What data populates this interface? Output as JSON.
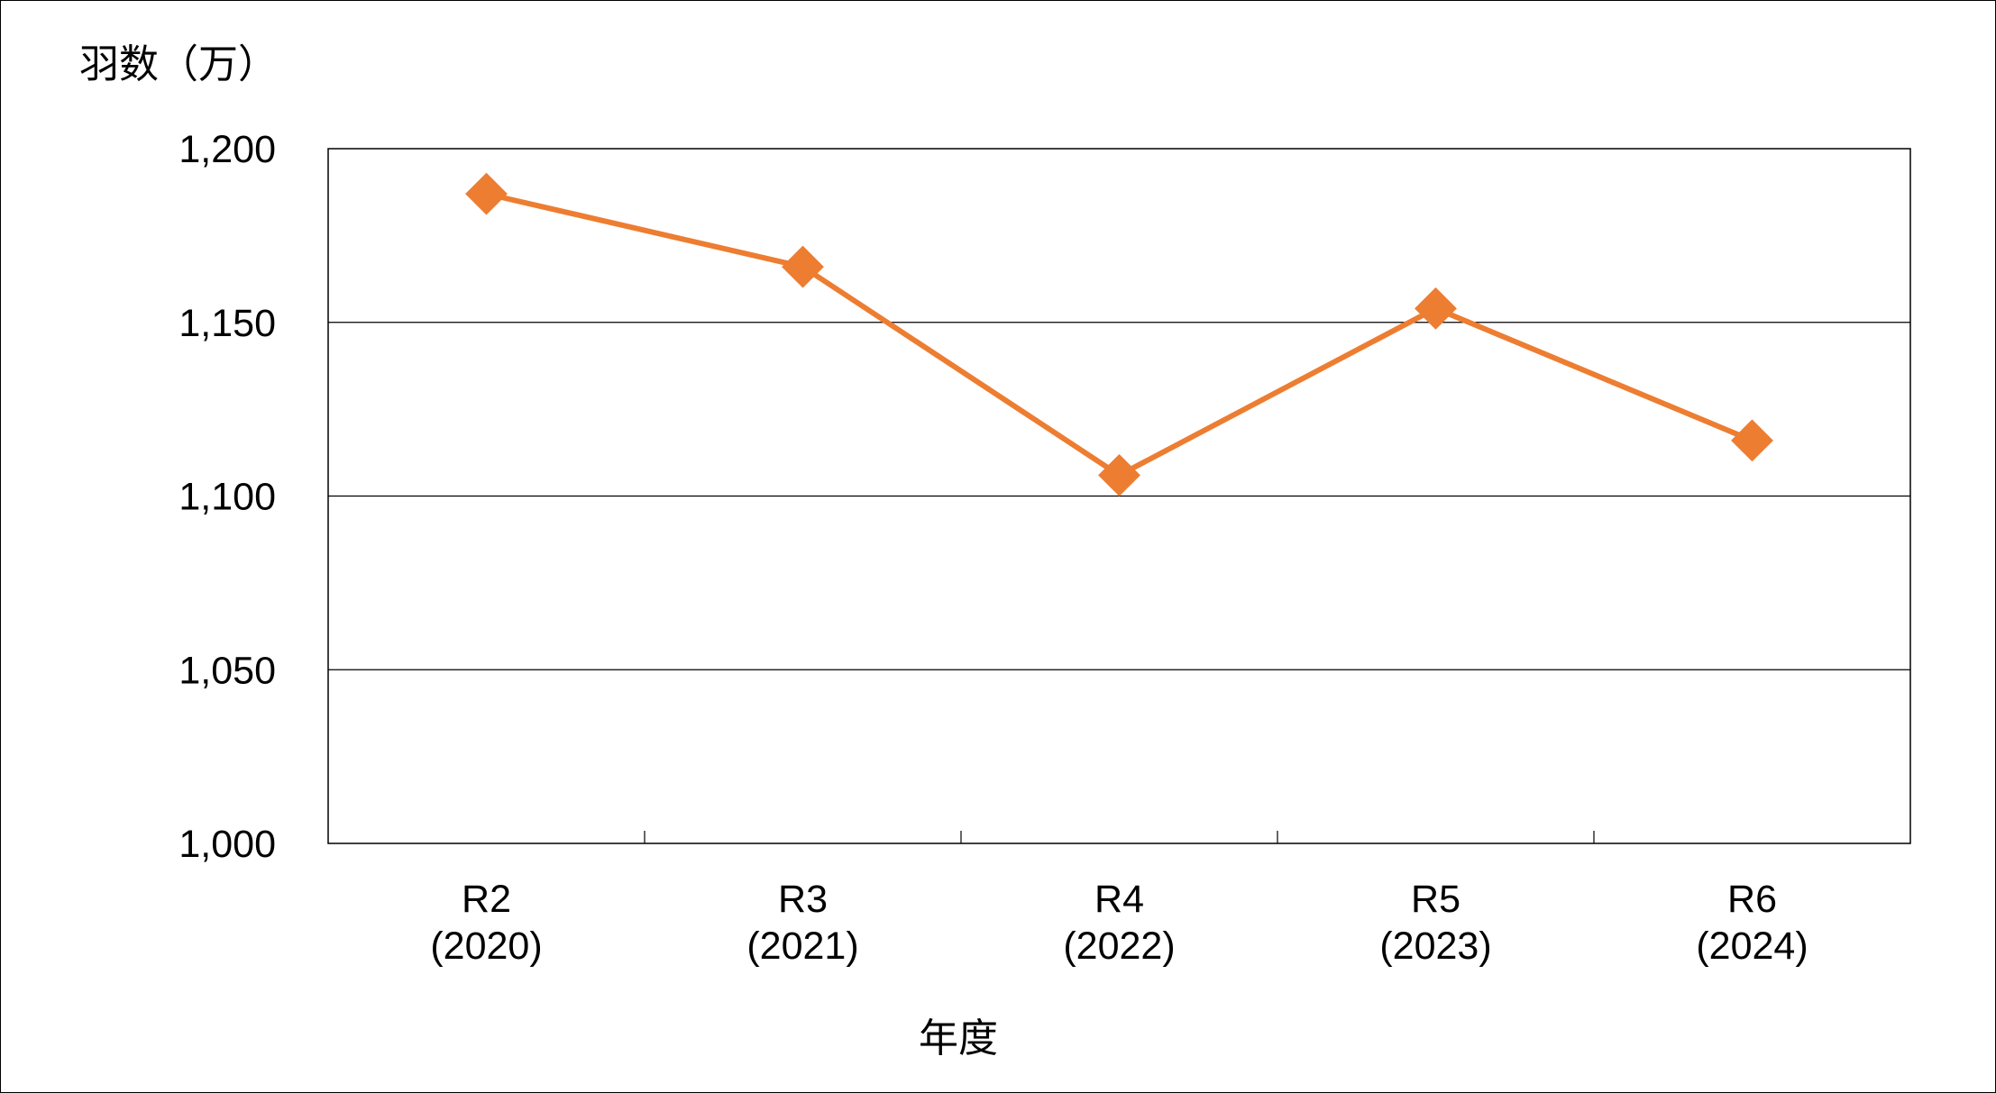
{
  "chart_data": {
    "type": "line",
    "title": "",
    "ylabel": "羽数（万）",
    "xlabel": "年度",
    "categories": [
      [
        "R2",
        "(2020)"
      ],
      [
        "R3",
        "(2021)"
      ],
      [
        "R4",
        "(2022)"
      ],
      [
        "R5",
        "(2023)"
      ],
      [
        "R6",
        "(2024)"
      ]
    ],
    "series": [
      {
        "values": [
          1187,
          1166,
          1106,
          1154,
          1116
        ],
        "color": "#ED7D31",
        "marker": "diamond"
      }
    ],
    "ylim": [
      1000,
      1200
    ],
    "yticks": [
      1000,
      1050,
      1100,
      1150,
      1200
    ],
    "ytick_labels": [
      "1,000",
      "1,050",
      "1,100",
      "1,150",
      "1,200"
    ],
    "grid": true,
    "legend": "none"
  }
}
